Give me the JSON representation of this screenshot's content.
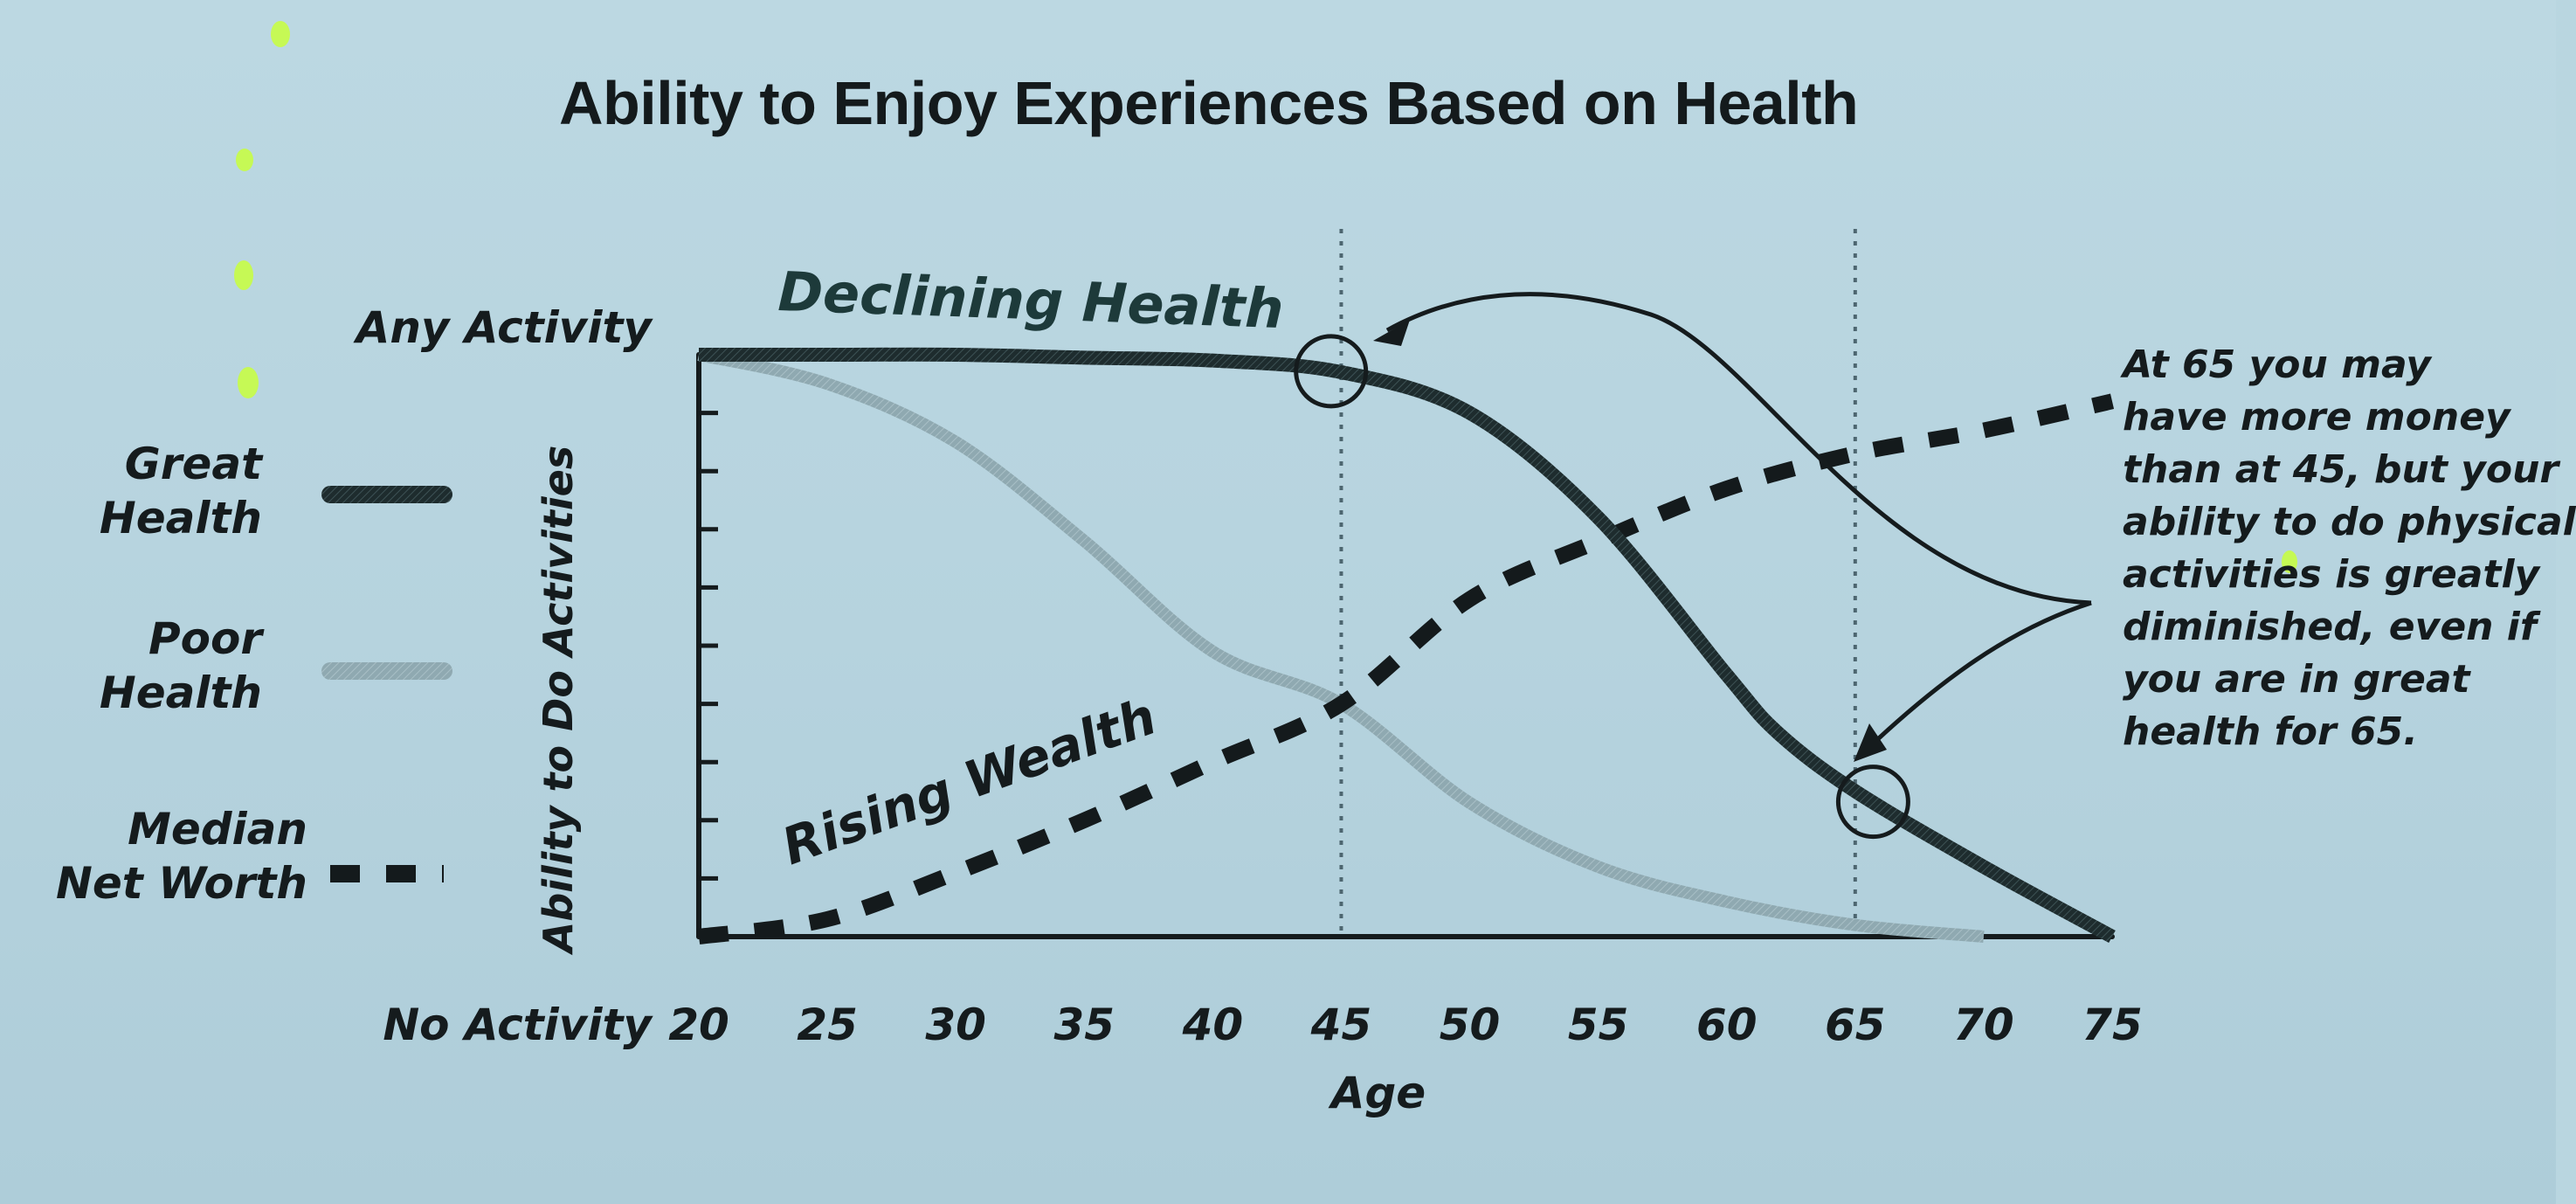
{
  "chart_data": {
    "type": "line",
    "title": "Ability to Enjoy Experiences Based on Health",
    "xlabel": "Age",
    "ylabel": "Ability to Do Activities",
    "y_top_label": "Any Activity",
    "y_bottom_label": "No Activity",
    "x_ticks": [
      20,
      25,
      30,
      35,
      40,
      45,
      50,
      55,
      60,
      65,
      70,
      75
    ],
    "xlim": [
      20,
      75
    ],
    "ylim": [
      0,
      100
    ],
    "vlines": [
      45,
      65
    ],
    "grid": false,
    "series": [
      {
        "name": "Great Health",
        "x": [
          20,
          25,
          30,
          35,
          40,
          45,
          50,
          55,
          60,
          62,
          65,
          70,
          75
        ],
        "y": [
          100,
          100,
          100,
          99.5,
          99,
          97,
          90,
          72,
          45,
          35,
          25,
          12,
          0
        ]
      },
      {
        "name": "Poor Health",
        "x": [
          20,
          25,
          30,
          35,
          40,
          45,
          50,
          55,
          60,
          65,
          70
        ],
        "y": [
          100,
          95,
          85,
          68,
          49,
          40,
          23,
          12,
          6,
          2,
          0
        ]
      },
      {
        "name": "Median Net Worth",
        "x": [
          20,
          25,
          30,
          35,
          40,
          45,
          50,
          55,
          60,
          65,
          70,
          75
        ],
        "y": [
          0,
          3,
          11,
          20,
          30,
          40,
          58,
          68,
          77,
          83,
          87,
          92
        ]
      }
    ],
    "annotations": [
      {
        "text": "Declining Health"
      },
      {
        "text": "Rising Wealth"
      }
    ],
    "note_lines": [
      "At 65 you may",
      "have more money",
      "than at 45, but your",
      "ability to do physical",
      "activities is greatly",
      "diminished, even if",
      "you are in great",
      "health for 65."
    ],
    "legend": [
      {
        "lines": [
          "Great",
          "Health"
        ],
        "color": "#1e2c2e"
      },
      {
        "lines": [
          "Poor",
          "Health"
        ],
        "color": "#8faab2"
      },
      {
        "lines": [
          "Median",
          "Net Worth"
        ],
        "color": "#151b1d"
      }
    ],
    "colors": {
      "great": "#1e2c2e",
      "poor": "#8fa9b1",
      "wealth": "#141a1c",
      "highlight": "#c8ff3c"
    }
  }
}
